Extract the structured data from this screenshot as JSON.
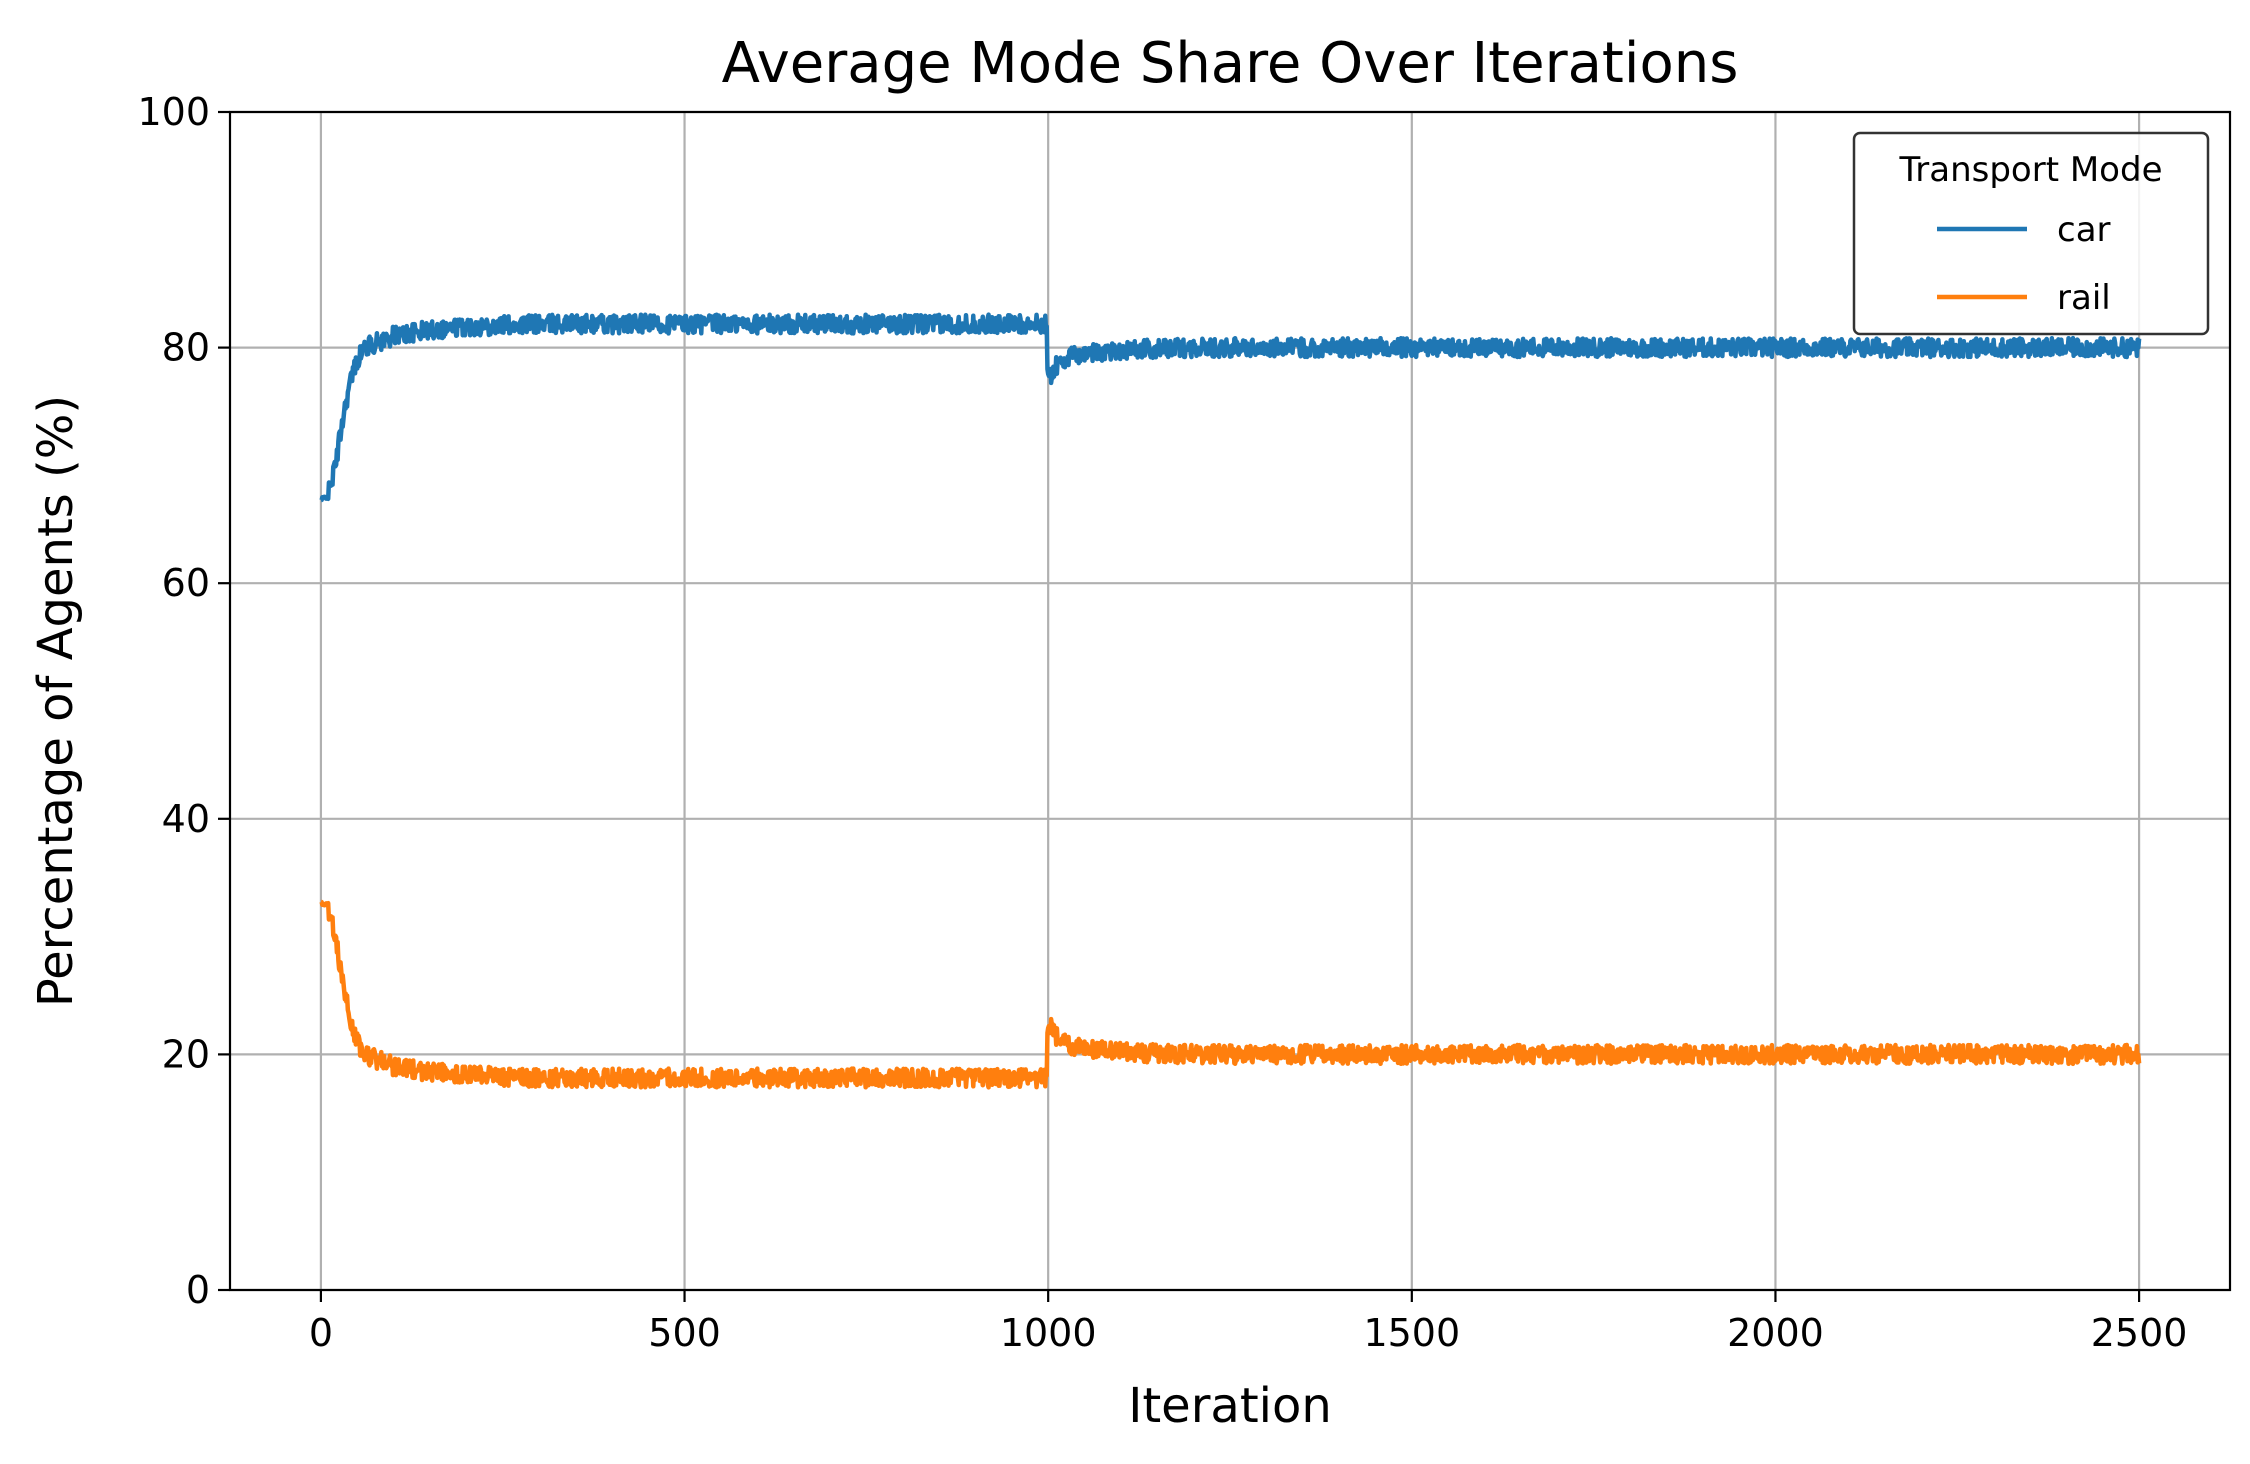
{
  "chart_data": {
    "type": "line",
    "title": "Average Mode Share Over Iterations",
    "xlabel": "Iteration",
    "ylabel": "Percentage of Agents (%)",
    "xlim": [
      -125,
      2625
    ],
    "ylim": [
      0,
      100
    ],
    "xticks": [
      0,
      500,
      1000,
      1500,
      2000,
      2500
    ],
    "yticks": [
      0,
      20,
      40,
      60,
      80,
      100
    ],
    "grid": true,
    "legend": {
      "title": "Transport Mode",
      "position": "top-right"
    },
    "noise_amplitude": 0.8,
    "series": [
      {
        "name": "car",
        "color": "#1f77b4",
        "x": [
          0,
          10,
          20,
          30,
          40,
          50,
          60,
          80,
          100,
          150,
          200,
          300,
          500,
          700,
          900,
          998,
          999,
          1000,
          1005,
          1020,
          1050,
          1100,
          1200,
          1500,
          2000,
          2500
        ],
        "y": [
          67,
          67.5,
          70,
          74,
          77,
          79,
          80,
          80.5,
          81,
          81.5,
          81.8,
          82,
          82,
          82,
          82,
          82,
          78,
          77,
          78,
          79,
          79.5,
          79.8,
          80,
          80,
          80,
          80
        ]
      },
      {
        "name": "rail",
        "color": "#ff7f0e",
        "x": [
          0,
          10,
          20,
          30,
          40,
          50,
          60,
          80,
          100,
          150,
          200,
          300,
          500,
          700,
          900,
          998,
          999,
          1000,
          1005,
          1020,
          1050,
          1100,
          1200,
          1500,
          2000,
          2500
        ],
        "y": [
          33,
          32.5,
          30,
          26,
          23,
          21,
          20,
          19.5,
          19,
          18.5,
          18.2,
          18,
          18,
          18,
          18,
          18,
          22,
          23,
          22,
          21,
          20.5,
          20.2,
          20,
          20,
          20,
          20
        ]
      }
    ]
  }
}
